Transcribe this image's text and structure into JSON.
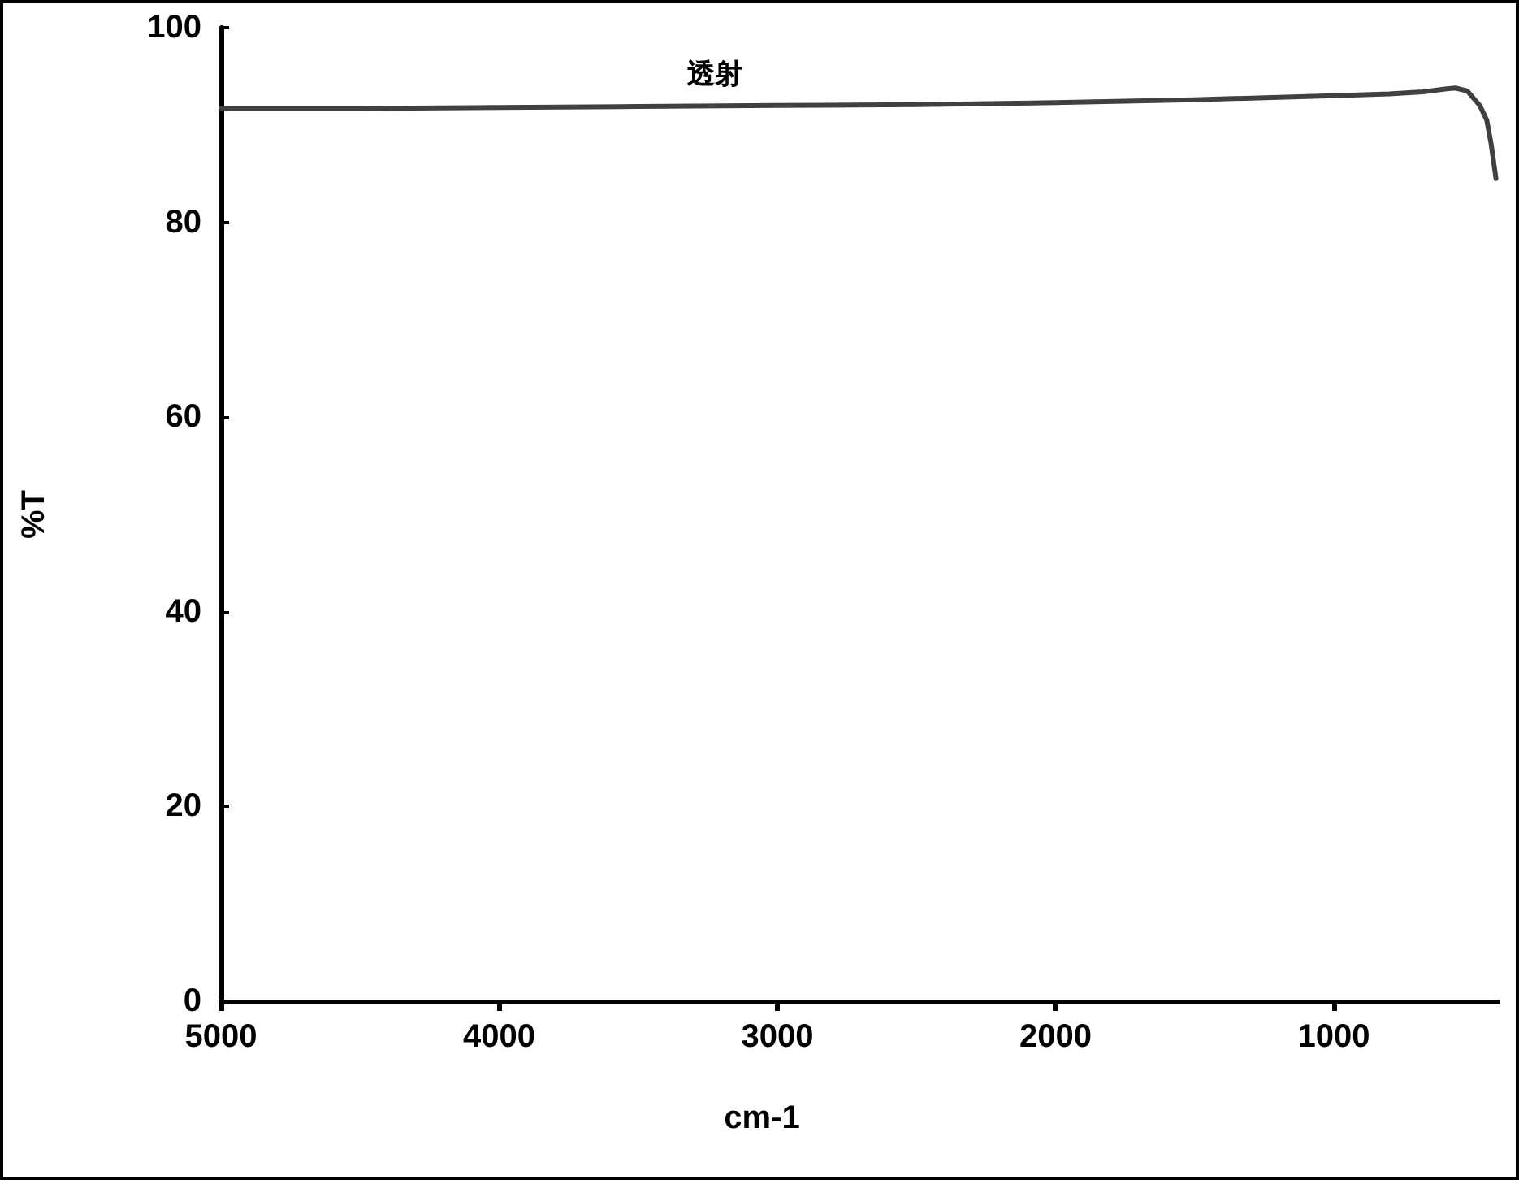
{
  "chart_data": {
    "type": "line",
    "title": "透射",
    "xlabel": "cm-1",
    "ylabel": "%T",
    "series": [
      {
        "color": "#404040",
        "x": [
          5000,
          4500,
          4000,
          3500,
          3000,
          2500,
          2000,
          1500,
          1000,
          800,
          680,
          600,
          563,
          520,
          475,
          450,
          434,
          417
        ],
        "values": [
          91.7,
          91.7,
          91.8,
          91.9,
          92.0,
          92.1,
          92.3,
          92.6,
          93.0,
          93.2,
          93.4,
          93.7,
          93.8,
          93.5,
          92.0,
          90.5,
          88.0,
          84.5
        ]
      }
    ],
    "xlim": [
      5000,
      410
    ],
    "xticks": [
      5000,
      4000,
      3000,
      2000,
      1000
    ],
    "ylim": [
      0,
      100
    ],
    "yticks": [
      0,
      20,
      40,
      60,
      80,
      100
    ],
    "grid": false,
    "marker": "none",
    "line_style": "solid"
  }
}
